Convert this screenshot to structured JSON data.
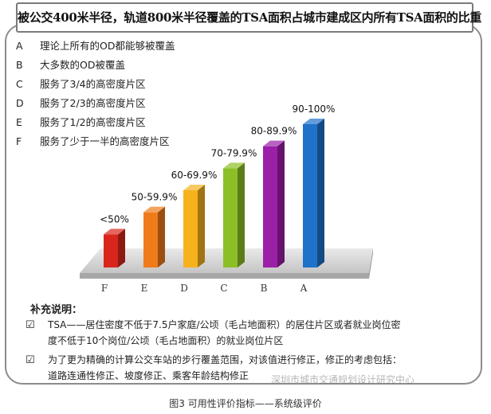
{
  "title": "被公交400米半径，轨道800米半径覆盖的TSA面积占城市建成区内所有TSA面积的比重",
  "legend": [
    {
      "key": "A",
      "text": "理论上所有的OD都能够被覆盖"
    },
    {
      "key": "B",
      "text": "大多数的OD被覆盖"
    },
    {
      "key": "C",
      "text": "服务了3/4的高密度片区"
    },
    {
      "key": "D",
      "text": "服务了2/3的高密度片区"
    },
    {
      "key": "E",
      "text": "服务了1/2的高密度片区"
    },
    {
      "key": "F",
      "text": "服务了少于一半的高密度片区"
    }
  ],
  "chart_data": {
    "type": "bar",
    "categories": [
      "F",
      "E",
      "D",
      "C",
      "B",
      "A"
    ],
    "value_labels": [
      "<50%",
      "50-59.9%",
      "60-69.9%",
      "70-79.9%",
      "80-89.9%",
      "90-100%"
    ],
    "values": [
      1,
      2,
      3,
      4,
      5,
      6
    ],
    "colors": [
      "#d9261c",
      "#ef7b1a",
      "#f6b21d",
      "#8cbf26",
      "#9c1fa8",
      "#1f72c9"
    ],
    "grid": false,
    "legend": "top-left"
  },
  "notes": {
    "title": "补充说明：",
    "items": [
      {
        "check": "☑",
        "lines": [
          "TSA——居住密度不低于7.5户家庭/公顷（毛占地面积）的居住片区或者就业岗位密",
          "度不低于10个岗位/公顷（毛占地面积）的就业岗位片区"
        ]
      },
      {
        "check": "☑",
        "lines": [
          "为了更为精确的计算公交车站的步行覆盖范围，对该值进行修正，修正的考虑包括：",
          "道路连通性修正、坡度修正、乘客年龄结构修正"
        ]
      }
    ]
  },
  "watermark": "深圳市城市交通规划设计研究中心",
  "caption": "图3    可用性评价指标——系统级评价"
}
